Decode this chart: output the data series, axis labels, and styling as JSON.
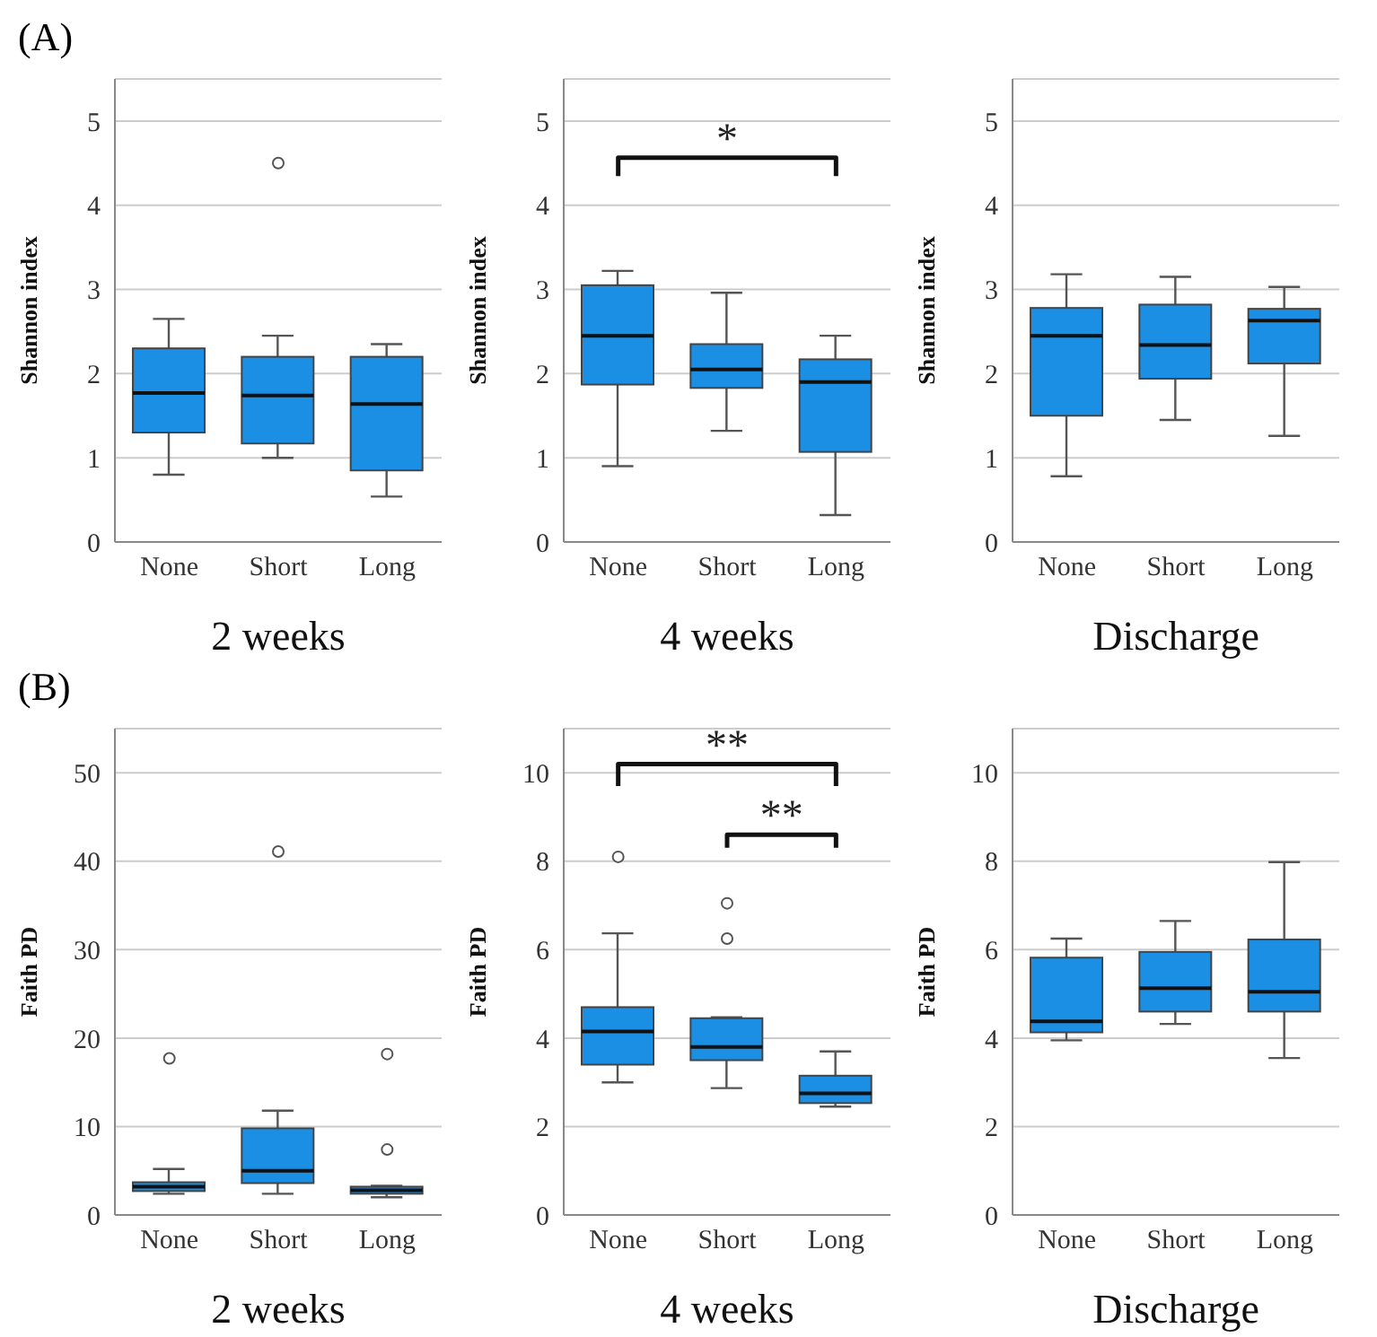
{
  "chart_data": [
    {
      "type": "box",
      "title": "(A)",
      "xlabel": "2 weeks",
      "ylabel": "Shannon index",
      "categories": [
        "None",
        "Short",
        "Long"
      ],
      "color": "#1a8fe3",
      "ylim": [
        0,
        5.5
      ],
      "yticks": [
        0,
        1,
        2,
        3,
        4,
        5
      ],
      "grid": "y",
      "boxes": [
        {
          "low": 0.8,
          "q1": 1.3,
          "median": 1.77,
          "q3": 2.3,
          "high": 2.65
        },
        {
          "low": 1.0,
          "q1": 1.17,
          "median": 1.74,
          "q3": 2.2,
          "high": 2.45,
          "outliers": [
            4.5
          ]
        },
        {
          "low": 0.54,
          "q1": 0.85,
          "median": 1.64,
          "q3": 2.2,
          "high": 2.35
        }
      ]
    },
    {
      "type": "box",
      "xlabel": "4 weeks",
      "ylabel": "Shannon index",
      "categories": [
        "None",
        "Short",
        "Long"
      ],
      "color": "#1a8fe3",
      "ylim": [
        0,
        5.5
      ],
      "yticks": [
        0,
        1,
        2,
        3,
        4,
        5
      ],
      "grid": "y",
      "annotations": [
        "*"
      ],
      "boxes": [
        {
          "low": 0.9,
          "q1": 1.87,
          "median": 2.45,
          "q3": 3.05,
          "high": 3.22
        },
        {
          "low": 1.32,
          "q1": 1.83,
          "median": 2.05,
          "q3": 2.35,
          "high": 2.96
        },
        {
          "low": 0.32,
          "q1": 1.07,
          "median": 1.9,
          "q3": 2.17,
          "high": 2.45
        }
      ]
    },
    {
      "type": "box",
      "xlabel": "Discharge",
      "ylabel": "Shannon index",
      "categories": [
        "None",
        "Short",
        "Long"
      ],
      "color": "#1a8fe3",
      "ylim": [
        0,
        5.5
      ],
      "yticks": [
        0,
        1,
        2,
        3,
        4,
        5
      ],
      "grid": "y",
      "boxes": [
        {
          "low": 0.78,
          "q1": 1.5,
          "median": 2.45,
          "q3": 2.78,
          "high": 3.18
        },
        {
          "low": 1.45,
          "q1": 1.94,
          "median": 2.34,
          "q3": 2.82,
          "high": 3.15
        },
        {
          "low": 1.26,
          "q1": 2.12,
          "median": 2.63,
          "q3": 2.77,
          "high": 3.03
        }
      ]
    },
    {
      "type": "box",
      "title": "(B)",
      "xlabel": "2 weeks",
      "ylabel": "Faith PD",
      "categories": [
        "None",
        "Short",
        "Long"
      ],
      "color": "#1a8fe3",
      "ylim": [
        0,
        55
      ],
      "yticks": [
        0,
        10,
        20,
        30,
        40,
        50
      ],
      "grid": "y",
      "boxes": [
        {
          "low": 2.4,
          "q1": 2.7,
          "median": 3.2,
          "q3": 3.7,
          "high": 5.2,
          "outliers": [
            17.7
          ]
        },
        {
          "low": 2.4,
          "q1": 3.6,
          "median": 5.0,
          "q3": 9.8,
          "high": 11.8,
          "outliers": [
            41.1
          ]
        },
        {
          "low": 2.0,
          "q1": 2.4,
          "median": 2.8,
          "q3": 3.2,
          "high": 3.3,
          "outliers": [
            18.2,
            7.4
          ]
        }
      ]
    },
    {
      "type": "box",
      "xlabel": "4 weeks",
      "ylabel": "Faith PD",
      "categories": [
        "None",
        "Short",
        "Long"
      ],
      "color": "#1a8fe3",
      "ylim": [
        0,
        11
      ],
      "yticks": [
        0,
        2,
        4,
        6,
        8,
        10
      ],
      "grid": "y",
      "annotations": [
        "**",
        "**"
      ],
      "boxes": [
        {
          "low": 3.0,
          "q1": 3.4,
          "median": 4.15,
          "q3": 4.7,
          "high": 6.37,
          "outliers": [
            8.1
          ]
        },
        {
          "low": 2.87,
          "q1": 3.5,
          "median": 3.8,
          "q3": 4.45,
          "high": 4.47,
          "outliers": [
            7.05,
            6.25
          ]
        },
        {
          "low": 2.45,
          "q1": 2.53,
          "median": 2.75,
          "q3": 3.15,
          "high": 3.7
        }
      ]
    },
    {
      "type": "box",
      "xlabel": "Discharge",
      "ylabel": "Faith PD",
      "categories": [
        "None",
        "Short",
        "Long"
      ],
      "color": "#1a8fe3",
      "ylim": [
        0,
        11
      ],
      "yticks": [
        0,
        2,
        4,
        6,
        8,
        10
      ],
      "grid": "y",
      "boxes": [
        {
          "low": 3.95,
          "q1": 4.13,
          "median": 4.38,
          "q3": 5.82,
          "high": 6.25
        },
        {
          "low": 4.32,
          "q1": 4.6,
          "median": 5.13,
          "q3": 5.95,
          "high": 6.65
        },
        {
          "low": 3.55,
          "q1": 4.6,
          "median": 5.05,
          "q3": 6.23,
          "high": 7.98
        }
      ]
    }
  ]
}
